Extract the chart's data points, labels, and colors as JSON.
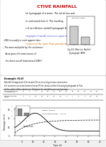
{
  "title": "CTIVE RAINFALL",
  "title_color": "#cc0000",
  "background": "#f0f0f0",
  "top_text_lines": [
    "he hyetograph of a storm. The initial loss and",
    "re subtracted from it. The resulting",
    "t of an effective rainfall hyetograph (ERH). It",
    "etograph of rainfall excess or supra rainfall.",
    "t represent the same Total quantity but in"
  ],
  "line_colors": [
    "black",
    "black",
    "black",
    "#4444cc",
    "#cc6600"
  ],
  "bullet_lines": [
    "ERH is usually in cm/h against time",
    "The area multiplied by the catchment",
    "Area gives the total volume of",
    "the direct runoff (total area of DRH)"
  ],
  "fig_caption": "Fig. 6.6  Effective  Rainfall\n   Hyetograph (ERH)",
  "example_title": "Example (6.6)",
  "example_text": "Rainfall of magnitude 3.8 cm and 2.8 cm occurring on two consecutive\n6-h durations on a catchment of area 27 km² produced the following hydrograph of flow\nat the outlet of the catchment. Estimate the rainfall-excess and φ index.",
  "table_header1": "Time from start\nof rainfall (h)",
  "table_header2": "Observed flow\n(m³/s)",
  "table_times": [
    "-6",
    "0",
    "6",
    "12",
    "18",
    "24",
    "30",
    "36",
    "40",
    "48",
    "54",
    "60",
    "66"
  ],
  "table_flows": [
    "6",
    "5",
    "13",
    "26",
    "21",
    "16",
    "12",
    "9",
    "7",
    "5",
    "3",
    "1.5",
    "4.5"
  ],
  "bar_label": "Rainfall excess",
  "curve_label": "Cumulative excess = 5.0 cm",
  "direct_runoff_label": "Direct runoff\n(0.834 cm)",
  "hyetograph_bars": [
    1.5,
    0.5
  ],
  "hyetograph_bar_color": "#888888"
}
